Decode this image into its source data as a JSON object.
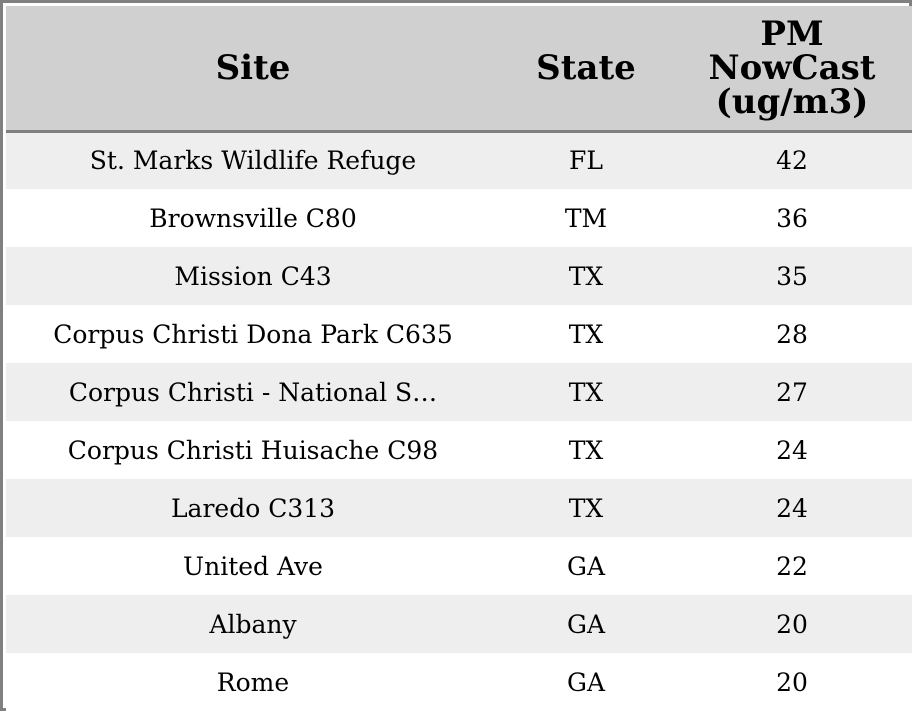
{
  "chart_data": {
    "type": "table",
    "columns": [
      "Site",
      "State",
      "PM NowCast (ug/m3)"
    ],
    "header_lines": {
      "site": [
        "Site"
      ],
      "state": [
        "State"
      ],
      "pm": [
        "PM",
        "NowCast",
        "(ug/m3)"
      ]
    },
    "rows": [
      {
        "site": "St. Marks Wildlife Refuge",
        "state": "FL",
        "pm": "42"
      },
      {
        "site": "Brownsville C80",
        "state": "TM",
        "pm": "36"
      },
      {
        "site": "Mission C43",
        "state": "TX",
        "pm": "35"
      },
      {
        "site": "Corpus Christi Dona Park C635",
        "state": "TX",
        "pm": "28"
      },
      {
        "site": "Corpus Christi - National S…",
        "state": "TX",
        "pm": "27"
      },
      {
        "site": "Corpus Christi Huisache C98",
        "state": "TX",
        "pm": "24"
      },
      {
        "site": "Laredo C313",
        "state": "TX",
        "pm": "24"
      },
      {
        "site": "United Ave",
        "state": "GA",
        "pm": "22"
      },
      {
        "site": "Albany",
        "state": "GA",
        "pm": "20"
      },
      {
        "site": "Rome",
        "state": "GA",
        "pm": "20"
      }
    ]
  },
  "colors": {
    "header_bg": "#d0d0d0",
    "row_odd": "#eeeeee",
    "row_even": "#ffffff",
    "border": "#808080"
  }
}
